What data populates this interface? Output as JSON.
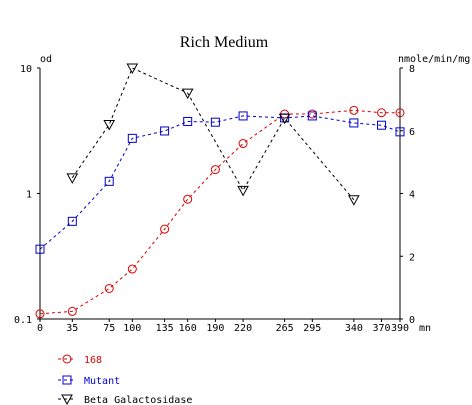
{
  "chart_data": {
    "type": "line",
    "title": "Rich Medium",
    "x_unit": "mn",
    "left_unit": "od",
    "right_unit": "nmole/min/mg",
    "x_ticks": [
      0,
      35,
      75,
      100,
      135,
      160,
      190,
      220,
      265,
      295,
      340,
      370,
      390
    ],
    "x_tick_labels": [
      "0",
      "35",
      "75",
      "100",
      "135",
      "160",
      "190",
      "220",
      "265",
      "295",
      "340",
      "370",
      "390"
    ],
    "xlim": [
      0,
      390
    ],
    "left_axis": {
      "scale": "log",
      "ylim": [
        0.1,
        10
      ],
      "ticks": [
        0.1,
        1,
        10
      ],
      "tick_labels": [
        "0.1",
        "1",
        "10"
      ]
    },
    "right_axis": {
      "scale": "linear",
      "ylim": [
        0,
        8
      ],
      "ticks": [
        0,
        2,
        4,
        6,
        8
      ],
      "tick_labels": [
        "0",
        "2",
        "4",
        "6",
        "8"
      ]
    },
    "grid": false,
    "legend_position": "bottom-left",
    "series": [
      {
        "name": "168",
        "axis": "left",
        "marker": "circle",
        "color": "#dd0000",
        "x": [
          0,
          35,
          75,
          100,
          135,
          160,
          190,
          220,
          265,
          295,
          340,
          370,
          390
        ],
        "y": [
          0.11,
          0.115,
          0.175,
          0.25,
          0.52,
          0.9,
          1.55,
          2.5,
          4.3,
          4.3,
          4.6,
          4.4,
          4.4
        ]
      },
      {
        "name": "Mutant",
        "axis": "left",
        "marker": "square",
        "color": "#0000cc",
        "x": [
          0,
          35,
          75,
          100,
          135,
          160,
          190,
          220,
          265,
          295,
          340,
          370,
          390
        ],
        "y": [
          0.36,
          0.6,
          1.25,
          2.75,
          3.15,
          3.75,
          3.7,
          4.15,
          4.0,
          4.15,
          3.65,
          3.5,
          3.1
        ]
      },
      {
        "name": "Beta Galactosidase",
        "axis": "right",
        "marker": "triangle-down",
        "color": "#000000",
        "x": [
          35,
          75,
          100,
          160,
          220,
          265,
          340
        ],
        "y": [
          4.5,
          6.2,
          8.0,
          7.2,
          4.1,
          6.4,
          3.8
        ]
      }
    ]
  }
}
